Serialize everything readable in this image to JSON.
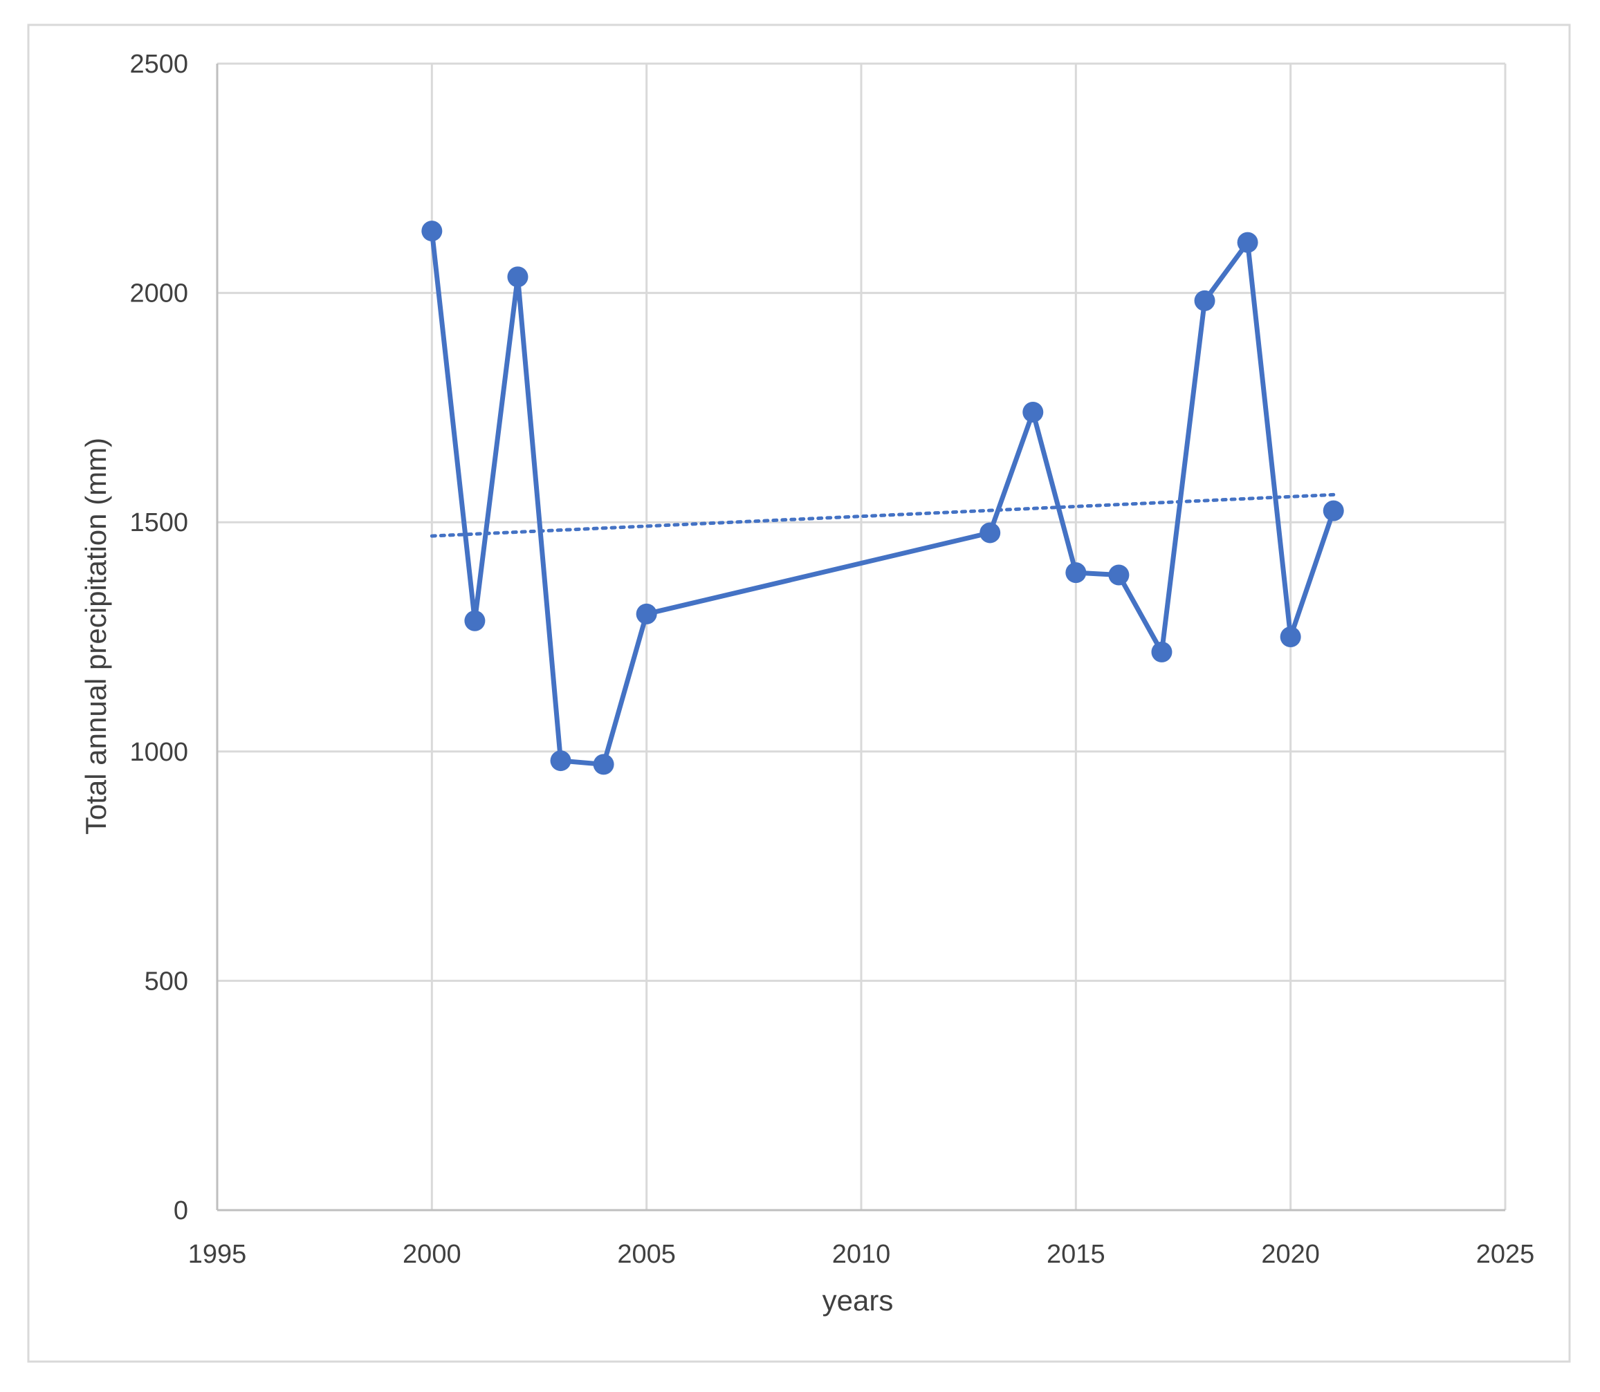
{
  "chart_data": {
    "type": "line",
    "title": "",
    "xlabel": "years",
    "ylabel": "Total annual precipitation (mm)",
    "xlim": [
      1995,
      2025
    ],
    "ylim": [
      0,
      2500
    ],
    "xticks": [
      "1995",
      "2000",
      "2005",
      "2010",
      "2015",
      "2020",
      "2025"
    ],
    "yticks": [
      "0",
      "500",
      "1000",
      "1500",
      "2000",
      "2500"
    ],
    "grid": true,
    "legend": "none",
    "series": [
      {
        "color": "#4472C4",
        "marker": "circle",
        "points": [
          {
            "x": 2000,
            "y": 2135
          },
          {
            "x": 2001,
            "y": 1285
          },
          {
            "x": 2002,
            "y": 2035
          },
          {
            "x": 2003,
            "y": 980
          },
          {
            "x": 2004,
            "y": 972
          },
          {
            "x": 2005,
            "y": 1300
          },
          {
            "x": 2013,
            "y": 1477
          },
          {
            "x": 2014,
            "y": 1740
          },
          {
            "x": 2015,
            "y": 1390
          },
          {
            "x": 2016,
            "y": 1385
          },
          {
            "x": 2017,
            "y": 1217
          },
          {
            "x": 2018,
            "y": 1983
          },
          {
            "x": 2019,
            "y": 2110
          },
          {
            "x": 2020,
            "y": 1250
          },
          {
            "x": 2021,
            "y": 1525
          }
        ]
      }
    ],
    "trendline": {
      "type": "linear",
      "style": "dotted",
      "color": "#4472C4",
      "x": [
        2000,
        2021
      ],
      "y": [
        1470,
        1560
      ]
    }
  }
}
